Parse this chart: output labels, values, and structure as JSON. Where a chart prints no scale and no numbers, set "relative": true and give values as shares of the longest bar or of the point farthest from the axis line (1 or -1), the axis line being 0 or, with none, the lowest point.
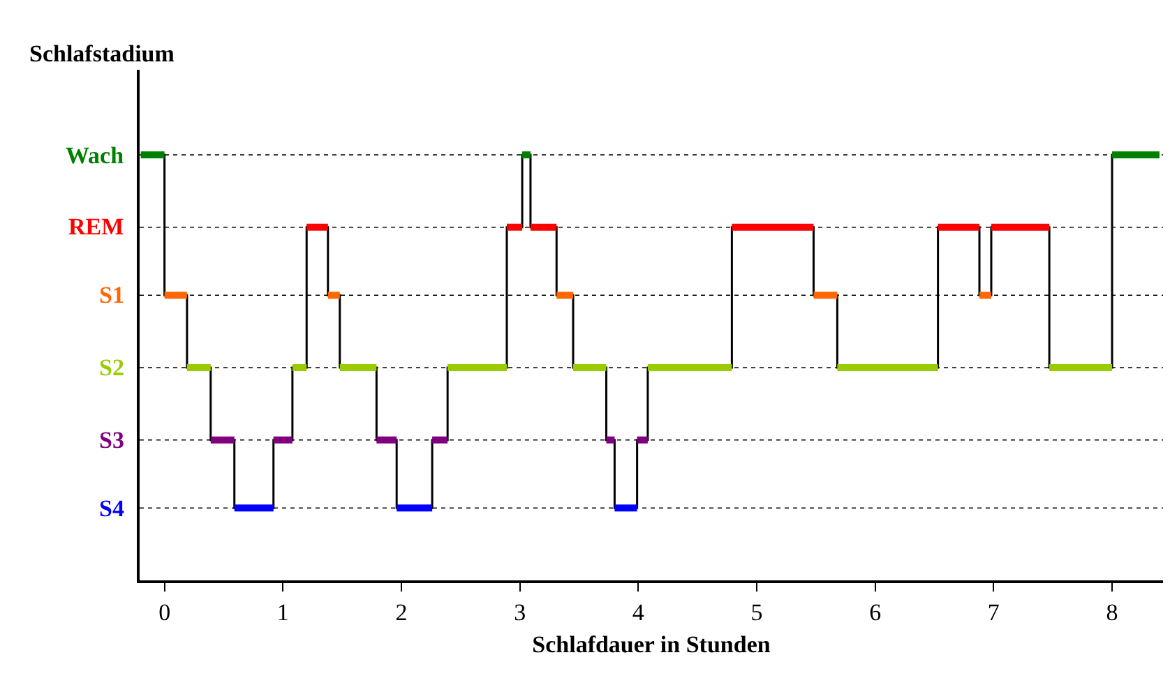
{
  "chart_data": {
    "type": "step",
    "relative": true,
    "ylabel": "Schlafstadium",
    "xlabel": "Schlafdauer in Stunden",
    "xlim": [
      -0.21,
      8.43
    ],
    "xticks": [
      0,
      1,
      2,
      3,
      4,
      5,
      6,
      7,
      8
    ],
    "ref_lines": [
      {
        "axis": "y",
        "value": 1,
        "color": "#000000",
        "line_style": "dotted"
      },
      {
        "axis": "y",
        "value": 0.83,
        "color": "#000000",
        "line_style": "dotted"
      },
      {
        "axis": "y",
        "value": 0.67,
        "color": "#000000",
        "line_style": "dotted"
      },
      {
        "axis": "y",
        "value": 0.5,
        "color": "#000000",
        "line_style": "dotted"
      },
      {
        "axis": "y",
        "value": 0.33,
        "color": "#000000",
        "line_style": "dotted"
      },
      {
        "axis": "y",
        "value": 0.17,
        "color": "#000000",
        "line_style": "dotted"
      }
    ],
    "legend": false,
    "marker": "none",
    "line_style": "solid",
    "series": [
      {
        "color": "#000000",
        "x": [
          -0.2,
          0,
          0.19,
          0.39,
          0.59,
          0.92,
          1.08,
          1.2,
          1.38,
          1.48,
          1.79,
          1.96,
          2.26,
          2.39,
          2.89,
          3.02,
          3.09,
          3.31,
          3.45,
          3.73,
          3.8,
          3.99,
          4.08,
          4.79,
          5.48,
          5.68,
          6.53,
          6.88,
          6.98,
          7.47,
          8.0,
          8.4
        ],
        "values": [
          1,
          0.67,
          0.5,
          0.33,
          0.17,
          0.33,
          0.5,
          0.83,
          0.67,
          0.5,
          0.33,
          0.17,
          0.33,
          0.5,
          0.83,
          1,
          0.83,
          0.67,
          0.5,
          0.33,
          0.17,
          0.33,
          0.5,
          0.83,
          0.67,
          0.5,
          0.83,
          0.67,
          0.83,
          0.5,
          1,
          1
        ]
      },
      {
        "name": "Wach",
        "color": "#008000",
        "type": "line",
        "x": [
          -0.2,
          0,
          null,
          3.02,
          3.09,
          null,
          8.0,
          8.4
        ],
        "values": [
          1,
          1,
          null,
          1,
          1,
          null,
          1,
          1
        ]
      },
      {
        "name": "REM",
        "color": "#ff0000",
        "type": "line",
        "x": [
          1.2,
          1.38,
          null,
          2.89,
          3.02,
          null,
          3.09,
          3.31,
          null,
          4.79,
          5.48,
          null,
          6.53,
          6.88,
          null,
          6.98,
          7.47
        ],
        "values": [
          0.83,
          0.83,
          null,
          0.83,
          0.83,
          null,
          0.83,
          0.83,
          null,
          0.83,
          0.83,
          null,
          0.83,
          0.83,
          null,
          0.83,
          0.83
        ]
      },
      {
        "name": "S1",
        "color": "#ff6600",
        "type": "line",
        "x": [
          0,
          0.19,
          null,
          1.38,
          1.48,
          null,
          3.31,
          3.45,
          null,
          5.48,
          5.68,
          null,
          6.88,
          6.98
        ],
        "values": [
          0.67,
          0.67,
          null,
          0.67,
          0.67,
          null,
          0.67,
          0.67,
          null,
          0.67,
          0.67,
          null,
          0.67,
          0.67
        ]
      },
      {
        "name": "S2",
        "color": "#99cc00",
        "type": "line",
        "x": [
          0.19,
          0.39,
          null,
          1.08,
          1.2,
          null,
          1.48,
          1.79,
          null,
          2.39,
          2.89,
          null,
          3.45,
          3.73,
          null,
          4.08,
          4.79,
          null,
          5.68,
          6.53,
          null,
          7.47,
          8.0
        ],
        "values": [
          0.5,
          0.5,
          null,
          0.5,
          0.5,
          null,
          0.5,
          0.5,
          null,
          0.5,
          0.5,
          null,
          0.5,
          0.5,
          null,
          0.5,
          0.5,
          null,
          0.5,
          0.5,
          null,
          0.5,
          0.5
        ]
      },
      {
        "name": "S3",
        "color": "#800080",
        "type": "line",
        "x": [
          0.39,
          0.59,
          null,
          0.92,
          1.08,
          null,
          1.79,
          1.96,
          null,
          2.26,
          2.39,
          null,
          3.73,
          3.8,
          null,
          3.99,
          4.08
        ],
        "values": [
          0.33,
          0.33,
          null,
          0.33,
          0.33,
          null,
          0.33,
          0.33,
          null,
          0.33,
          0.33,
          null,
          0.33,
          0.33,
          null,
          0.33,
          0.33
        ]
      },
      {
        "name": "S4",
        "color": "#0000ff",
        "type": "line",
        "x": [
          0.59,
          0.92,
          null,
          1.96,
          2.26,
          null,
          3.8,
          3.99
        ],
        "values": [
          0.17,
          0.17,
          null,
          0.17,
          0.17,
          null,
          0.17,
          0.17
        ]
      }
    ]
  }
}
